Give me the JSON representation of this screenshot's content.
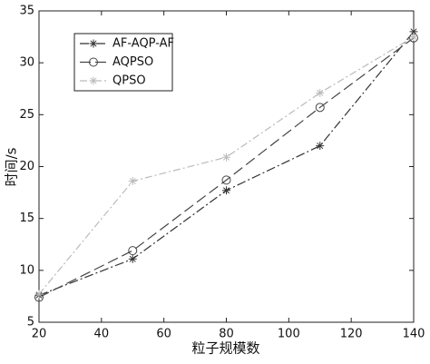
{
  "chart_data": {
    "type": "line",
    "x_label": "粒子规模数",
    "y_label": "时间/s",
    "x": [
      20,
      50,
      80,
      110,
      140
    ],
    "series": [
      {
        "name": "AF-AQP-AF",
        "color": "#333333",
        "marker": "star",
        "dash": "10 3 2 3",
        "values": [
          7.6,
          11.1,
          17.7,
          22,
          33
        ]
      },
      {
        "name": "AQPSO",
        "color": "#444444",
        "marker": "circle",
        "dash": "12 5",
        "values": [
          7.4,
          11.9,
          18.7,
          25.7,
          32.4
        ]
      },
      {
        "name": "QPSO",
        "color": "#bbbbbb",
        "marker": "star",
        "dash": "8 3 2 3",
        "values": [
          7.7,
          18.6,
          20.9,
          27.1,
          32.5
        ]
      }
    ],
    "xlim": [
      20,
      140
    ],
    "xticks": [
      20,
      40,
      60,
      80,
      100,
      120,
      140
    ],
    "ylim": [
      5,
      35
    ],
    "yticks": [
      5,
      10,
      15,
      20,
      25,
      30,
      35
    ],
    "legend": "upper-left"
  }
}
